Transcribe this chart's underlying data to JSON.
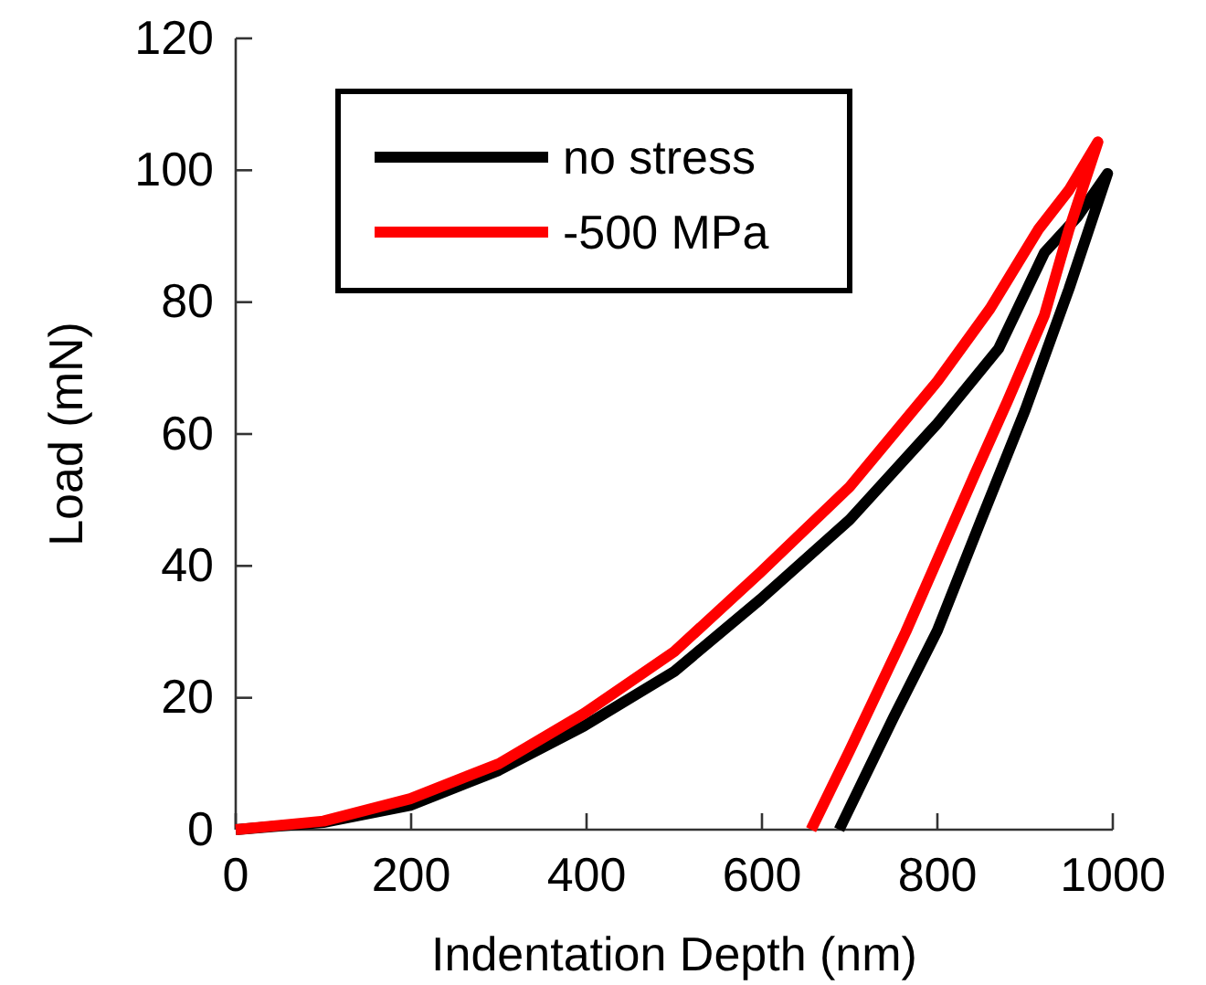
{
  "chart_data": {
    "type": "line",
    "xlabel": "Indentation Depth (nm)",
    "ylabel": "Load (mN)",
    "xlim": [
      0,
      1000
    ],
    "xticks": [
      0,
      200,
      400,
      600,
      800,
      1000
    ],
    "ylim": [
      0,
      120
    ],
    "yticks": [
      0,
      20,
      40,
      60,
      80,
      100,
      120
    ],
    "legend": "top left",
    "grid": false,
    "marker": "none",
    "line_style": "solid",
    "series": [
      {
        "name": "no stress",
        "color": "#000000",
        "x": [
          0,
          100,
          199,
          300,
          397,
          500,
          598,
          700,
          800,
          870,
          922,
          960,
          994,
          950,
          900,
          850,
          800,
          750,
          688
        ],
        "values": [
          0,
          1.1,
          3.7,
          9,
          15.7,
          24,
          34.9,
          47,
          61.6,
          73,
          87.5,
          93,
          99.5,
          82,
          63.6,
          47,
          30.2,
          17,
          0
        ]
      },
      {
        "name": "-500 MPa",
        "color": "#ff0000",
        "x": [
          0,
          100,
          199,
          300,
          397,
          500,
          598,
          700,
          800,
          860,
          915,
          950,
          983,
          950,
          922,
          880,
          843,
          764,
          700,
          656
        ],
        "values": [
          0,
          1.3,
          4.7,
          10,
          17.6,
          27,
          39,
          52,
          68,
          79,
          91,
          97,
          104.3,
          91,
          78,
          65,
          54,
          30,
          12,
          0
        ]
      }
    ]
  }
}
